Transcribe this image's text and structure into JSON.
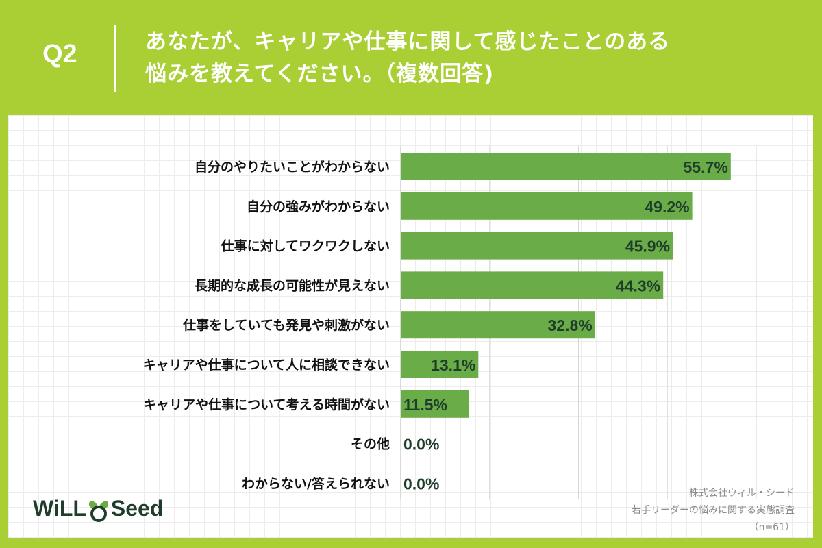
{
  "header": {
    "q_label": "Q2",
    "question_line1": "あなたが、キャリアや仕事に関して感じたことのある",
    "question_line2": "悩みを教えてください。（複数回答)"
  },
  "source": {
    "line1": "株式会社ウィル・シード",
    "line2": "若手リーダーの悩みに関する実態調査",
    "line3": "（n=61）"
  },
  "logo": {
    "text_left": "WiLL",
    "text_right": "Seed"
  },
  "colors": {
    "background": "#a9cf35",
    "bar": "#6aac48",
    "label_text": "#1f3d2b",
    "category_text": "#111111"
  },
  "chart_data": {
    "type": "bar",
    "orientation": "horizontal",
    "categories": [
      "自分のやりたいことがわからない",
      "自分の強みがわからない",
      "仕事に対してワクワクしない",
      "長期的な成長の可能性が見えない",
      "仕事をしていても発見や刺激がない",
      "キャリアや仕事について人に相談できない",
      "キャリアや仕事について考える時間がない",
      "その他",
      "わからない/答えられない"
    ],
    "values": [
      55.7,
      49.2,
      45.9,
      44.3,
      32.8,
      13.1,
      11.5,
      0.0,
      0.0
    ],
    "value_labels": [
      "55.7%",
      "49.2%",
      "45.9%",
      "44.3%",
      "32.8%",
      "13.1%",
      "11.5%",
      "0.0%",
      "0.0%"
    ],
    "xlim": [
      0,
      60
    ],
    "grid": true
  }
}
